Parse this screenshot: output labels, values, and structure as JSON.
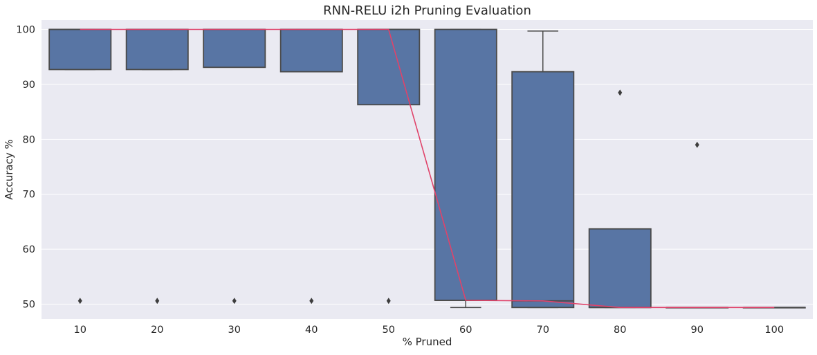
{
  "chart_data": {
    "type": "box",
    "title": "RNN-RELU i2h Pruning Evaluation",
    "xlabel": "% Pruned",
    "ylabel": "Accuracy %",
    "categories": [
      "10",
      "20",
      "30",
      "40",
      "50",
      "60",
      "70",
      "80",
      "90",
      "100"
    ],
    "ylim": [
      47.3,
      101.7
    ],
    "yticks": [
      50,
      60,
      70,
      80,
      90,
      100
    ],
    "grid": true,
    "box_color": "#5875a4",
    "edge_color": "#4a4a4a",
    "median_line_color": "#e0436a",
    "background_color": "#eaeaf2",
    "boxes": [
      {
        "category": "10",
        "whisker_low": 92.7,
        "q1": 92.7,
        "median": 100.0,
        "q3": 100.0,
        "whisker_high": 100.0,
        "outliers": [
          50.6
        ]
      },
      {
        "category": "20",
        "whisker_low": 92.7,
        "q1": 92.7,
        "median": 100.0,
        "q3": 100.0,
        "whisker_high": 100.0,
        "outliers": [
          50.6
        ]
      },
      {
        "category": "30",
        "whisker_low": 93.1,
        "q1": 93.1,
        "median": 100.0,
        "q3": 100.0,
        "whisker_high": 100.0,
        "outliers": [
          50.6
        ]
      },
      {
        "category": "40",
        "whisker_low": 92.3,
        "q1": 92.3,
        "median": 100.0,
        "q3": 100.0,
        "whisker_high": 100.0,
        "outliers": [
          50.6
        ]
      },
      {
        "category": "50",
        "whisker_low": 86.3,
        "q1": 86.3,
        "median": 100.0,
        "q3": 100.0,
        "whisker_high": 100.0,
        "outliers": [
          50.6
        ]
      },
      {
        "category": "60",
        "whisker_low": 49.4,
        "q1": 50.7,
        "median": 50.7,
        "q3": 100.0,
        "whisker_high": 100.0,
        "outliers": []
      },
      {
        "category": "70",
        "whisker_low": 49.4,
        "q1": 49.4,
        "median": 50.6,
        "q3": 92.3,
        "whisker_high": 99.7,
        "outliers": []
      },
      {
        "category": "80",
        "whisker_low": 49.4,
        "q1": 49.4,
        "median": 49.4,
        "q3": 63.7,
        "whisker_high": 63.7,
        "outliers": [
          88.5
        ]
      },
      {
        "category": "90",
        "whisker_low": 49.4,
        "q1": 49.4,
        "median": 49.4,
        "q3": 49.4,
        "whisker_high": 49.4,
        "outliers": [
          79.0
        ]
      },
      {
        "category": "100",
        "whisker_low": 49.4,
        "q1": 49.4,
        "median": 49.4,
        "q3": 49.4,
        "whisker_high": 49.4,
        "outliers": []
      }
    ]
  }
}
